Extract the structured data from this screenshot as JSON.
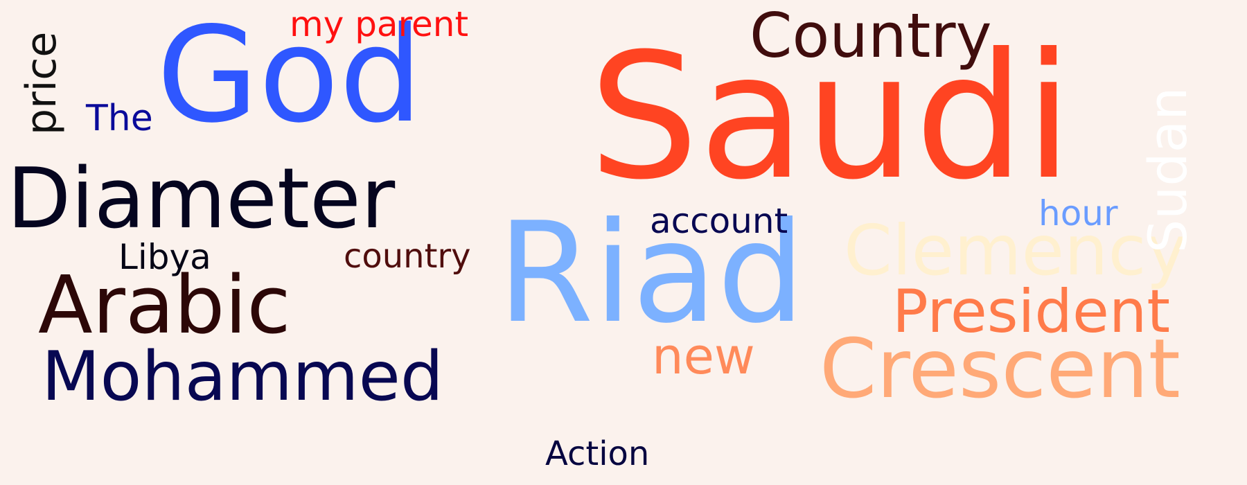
{
  "word_cloud": {
    "background": "#fbf2ed",
    "words": [
      {
        "text": "Saudi",
        "color": "#ff4422"
      },
      {
        "text": "Riad",
        "color": "#7cb1ff"
      },
      {
        "text": "God",
        "color": "#2f57ff"
      },
      {
        "text": "Diameter",
        "color": "#05051f"
      },
      {
        "text": "Arabic",
        "color": "#2c0707"
      },
      {
        "text": "Mohammed",
        "color": "#080852"
      },
      {
        "text": "Crescent",
        "color": "#ffa977"
      },
      {
        "text": "Clemency",
        "color": "#fff0cf"
      },
      {
        "text": "President",
        "color": "#ff7b4a"
      },
      {
        "text": "Country",
        "color": "#400d0d"
      },
      {
        "text": "new",
        "color": "#ff8a5a"
      },
      {
        "text": "Sudan",
        "color": "#ffffff"
      },
      {
        "text": "price",
        "color": "#111111"
      },
      {
        "text": "my parent",
        "color": "#ff1010"
      },
      {
        "text": "The",
        "color": "#0a0a9a"
      },
      {
        "text": "account",
        "color": "#080852"
      },
      {
        "text": "country",
        "color": "#500d0d"
      },
      {
        "text": "Libya",
        "color": "#050515"
      },
      {
        "text": "hour",
        "color": "#6a9cff"
      },
      {
        "text": "Action",
        "color": "#060640"
      }
    ]
  }
}
